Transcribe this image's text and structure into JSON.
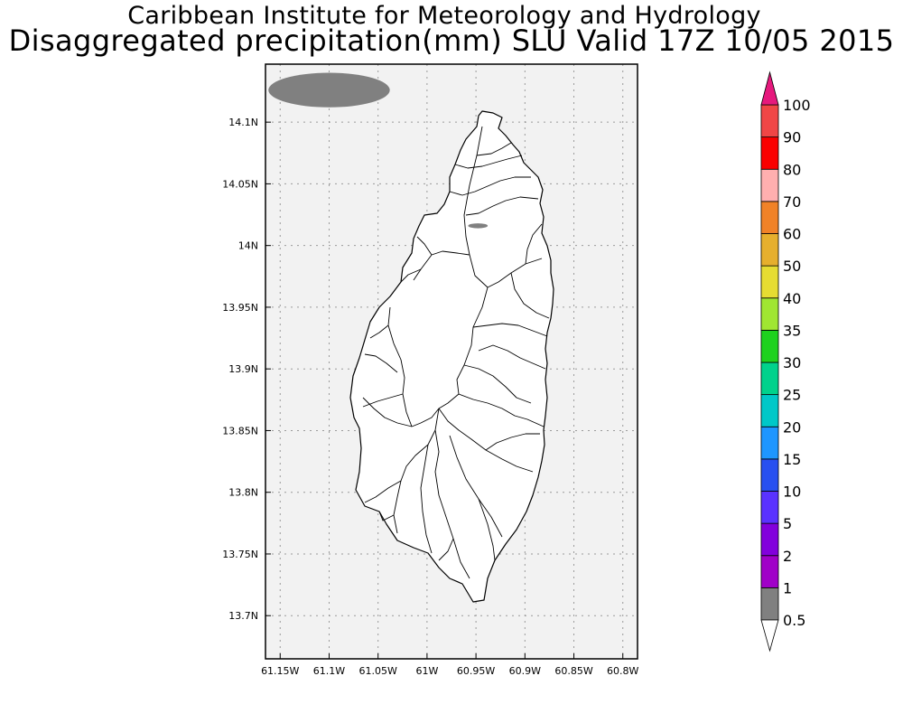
{
  "header": {
    "title": "Caribbean Institute for Meteorology and Hydrology",
    "subtitle": "Disaggregated precipitation(mm) SLU Valid 17Z 10/05 2015"
  },
  "map": {
    "region": "Saint Lucia",
    "x_axis": {
      "ticks": [
        {
          "value": -61.15,
          "label": "61.15W"
        },
        {
          "value": -61.1,
          "label": "61.1W"
        },
        {
          "value": -61.05,
          "label": "61.05W"
        },
        {
          "value": -61.0,
          "label": "61W"
        },
        {
          "value": -60.95,
          "label": "60.95W"
        },
        {
          "value": -60.9,
          "label": "60.9W"
        },
        {
          "value": -60.85,
          "label": "60.85W"
        },
        {
          "value": -60.8,
          "label": "60.8W"
        }
      ],
      "range": [
        -61.165,
        -60.785
      ]
    },
    "y_axis": {
      "ticks": [
        {
          "value": 14.1,
          "label": "14.1N"
        },
        {
          "value": 14.05,
          "label": "14.05N"
        },
        {
          "value": 14.0,
          "label": "14N"
        },
        {
          "value": 13.95,
          "label": "13.95N"
        },
        {
          "value": 13.9,
          "label": "13.9N"
        },
        {
          "value": 13.85,
          "label": "13.85N"
        },
        {
          "value": 13.8,
          "label": "13.8N"
        },
        {
          "value": 13.75,
          "label": "13.75N"
        },
        {
          "value": 13.7,
          "label": "13.7N"
        }
      ],
      "range": [
        13.665,
        14.147
      ]
    },
    "grid": true,
    "colors": {
      "land": "#ffffff",
      "water": "#f2f2f2",
      "outline": "#000000",
      "grid": "#9a9a9a"
    }
  },
  "precip_areas": [
    {
      "level": "0.5-1",
      "color": "#808080",
      "lon": -61.1,
      "lat": 14.126,
      "lon_radius": 0.062,
      "lat_radius": 0.014
    },
    {
      "level": "0.5-1",
      "color": "#808080",
      "lon": -60.948,
      "lat": 14.016,
      "lon_radius": 0.01,
      "lat_radius": 0.002
    }
  ],
  "colorbar": {
    "labels": [
      "0.5",
      "1",
      "2",
      "5",
      "10",
      "15",
      "20",
      "25",
      "30",
      "35",
      "40",
      "50",
      "60",
      "70",
      "80",
      "90",
      "100"
    ],
    "below_color": "#ffffff",
    "colors": [
      "#808080",
      "#a000c8",
      "#8200dc",
      "#5a32ff",
      "#2850f0",
      "#1e96ff",
      "#00c8c8",
      "#00d28c",
      "#1ed21e",
      "#a0e632",
      "#e6dc32",
      "#e6af2d",
      "#f08228",
      "#ffafaf",
      "#fa0000",
      "#f04646"
    ],
    "above_color": "#e6197d"
  }
}
